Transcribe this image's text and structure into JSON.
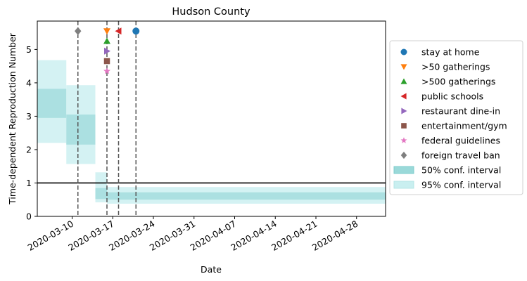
{
  "chart_data": {
    "type": "line",
    "title": "Hudson County",
    "xlabel": "Date",
    "ylabel": "Time-dependent Reproduction Number",
    "ylim": [
      0,
      5.85
    ],
    "yticks": [
      0,
      1,
      2,
      3,
      4,
      5
    ],
    "xlim": [
      "2020-03-04",
      "2020-05-03"
    ],
    "xticks": [
      "2020-03-10",
      "2020-03-17",
      "2020-03-24",
      "2020-03-31",
      "2020-04-07",
      "2020-04-14",
      "2020-04-21",
      "2020-04-28"
    ],
    "reference_line": 1,
    "intervals": [
      {
        "start": "2020-03-04",
        "end": "2020-03-09",
        "ci50": [
          2.95,
          3.82
        ],
        "ci95": [
          2.2,
          4.68
        ]
      },
      {
        "start": "2020-03-09",
        "end": "2020-03-14",
        "ci50": [
          2.15,
          3.05
        ],
        "ci95": [
          1.57,
          3.93
        ]
      },
      {
        "start": "2020-03-14",
        "end": "2020-03-16",
        "ci50": [
          0.52,
          0.85
        ],
        "ci95": [
          0.42,
          1.32
        ]
      },
      {
        "start": "2020-03-16",
        "end": "2020-05-03",
        "ci50": [
          0.5,
          0.72
        ],
        "ci95": [
          0.38,
          0.88
        ]
      }
    ],
    "events": [
      {
        "name": "stay at home",
        "date": "2020-03-21",
        "y": 5.55,
        "marker": "circle",
        "color": "#1f77b4"
      },
      {
        "name": ">50 gatherings",
        "date": "2020-03-16",
        "y": 5.55,
        "marker": "triangle-down",
        "color": "#ff7f0e"
      },
      {
        "name": ">500 gatherings",
        "date": "2020-03-16",
        "y": 5.25,
        "marker": "triangle-up",
        "color": "#2ca02c"
      },
      {
        "name": "public schools",
        "date": "2020-03-18",
        "y": 5.55,
        "marker": "triangle-left",
        "color": "#d62728"
      },
      {
        "name": "restaurant dine-in",
        "date": "2020-03-16",
        "y": 4.95,
        "marker": "triangle-right",
        "color": "#9467bd"
      },
      {
        "name": "entertainment/gym",
        "date": "2020-03-16",
        "y": 4.65,
        "marker": "square",
        "color": "#8c564b"
      },
      {
        "name": "federal guidelines",
        "date": "2020-03-16",
        "y": 4.35,
        "marker": "star",
        "color": "#e377c2"
      },
      {
        "name": "foreign travel ban",
        "date": "2020-03-11",
        "y": 5.55,
        "marker": "diamond",
        "color": "#7f7f7f"
      }
    ],
    "event_lines": [
      "2020-03-11",
      "2020-03-16",
      "2020-03-18",
      "2020-03-21"
    ],
    "legend": {
      "placement": "right",
      "entries": [
        "stay at home",
        ">50 gatherings",
        ">500 gatherings",
        "public schools",
        "restaurant dine-in",
        "entertainment/gym",
        "federal guidelines",
        "foreign travel ban",
        "50% conf. interval",
        "95% conf. interval"
      ]
    },
    "colors": {
      "ci50": "#9ad9d9",
      "ci95": "#c9eff0",
      "reference": "#000000",
      "event_line": "#555555"
    }
  }
}
